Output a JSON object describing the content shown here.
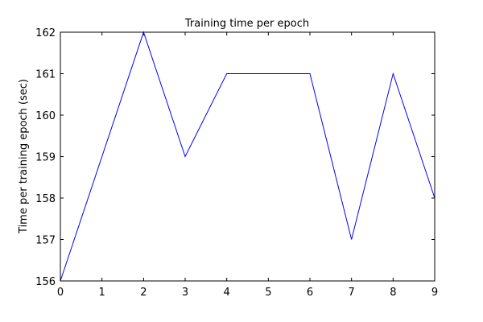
{
  "chart_data": {
    "type": "line",
    "title": "Training time per epoch",
    "xlabel": "",
    "ylabel": "Time per training epoch (sec)",
    "xlim": [
      0,
      9
    ],
    "ylim": [
      156,
      162
    ],
    "xticks": [
      0,
      1,
      2,
      3,
      4,
      5,
      6,
      7,
      8,
      9
    ],
    "yticks": [
      156,
      157,
      158,
      159,
      160,
      161,
      162
    ],
    "grid": false,
    "series": [
      {
        "color": "#0000ff",
        "x": [
          0,
          1,
          2,
          3,
          4,
          5,
          6,
          7,
          8,
          9
        ],
        "y": [
          156,
          159,
          162,
          159,
          161,
          161,
          161,
          157,
          161,
          158
        ]
      }
    ]
  }
}
